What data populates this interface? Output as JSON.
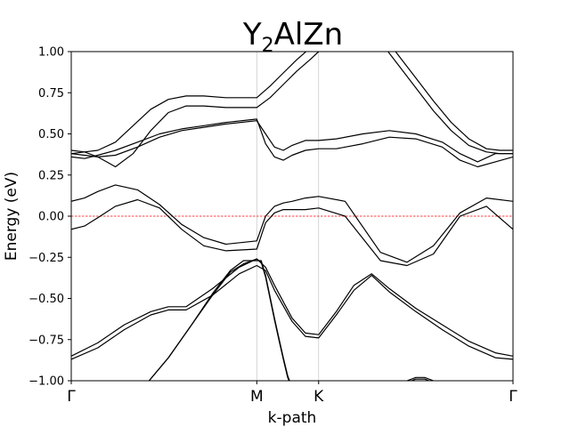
{
  "chart_data": {
    "type": "line",
    "title": "Y2AlZn",
    "title_parts": {
      "base1": "Y",
      "sub": "2",
      "base2": "AlZn"
    },
    "xlabel": "k-path",
    "ylabel": "Energy (eV)",
    "ylim": [
      -1.0,
      1.0
    ],
    "xlim": [
      0.0,
      1.0
    ],
    "yticks": [
      -1.0,
      -0.75,
      -0.5,
      -0.25,
      0.0,
      0.25,
      0.5,
      0.75,
      1.0
    ],
    "ytick_labels": [
      "−1.00",
      "−0.75",
      "−0.50",
      "−0.25",
      "0.00",
      "0.25",
      "0.50",
      "0.75",
      "1.00"
    ],
    "high_symmetry_points": [
      {
        "label": "Γ",
        "x": 0.0
      },
      {
        "label": "M",
        "x": 0.42
      },
      {
        "label": "K",
        "x": 0.56
      },
      {
        "label": "Γ",
        "x": 1.0
      }
    ],
    "fermi_level": 0.0,
    "fermi_color": "#ff0000",
    "band_color": "#000000",
    "vline_color": "#cccccc",
    "grid": false,
    "series": [
      {
        "x": [
          0,
          0.03,
          0.06,
          0.1,
          0.15,
          0.2,
          0.25,
          0.3,
          0.35,
          0.42,
          0.44,
          0.46,
          0.48,
          0.5,
          0.53,
          0.56,
          0.62,
          0.7,
          0.76,
          0.82,
          0.88,
          0.94,
          1.0
        ],
        "y": [
          0.09,
          0.11,
          0.15,
          0.19,
          0.16,
          0.07,
          -0.05,
          -0.13,
          -0.17,
          -0.15,
          0.0,
          0.06,
          0.08,
          0.09,
          0.11,
          0.12,
          0.09,
          -0.22,
          -0.28,
          -0.18,
          0.02,
          0.11,
          0.09
        ]
      },
      {
        "x": [
          0,
          0.03,
          0.06,
          0.1,
          0.15,
          0.2,
          0.25,
          0.3,
          0.35,
          0.42,
          0.44,
          0.46,
          0.48,
          0.5,
          0.53,
          0.56,
          0.62,
          0.7,
          0.76,
          0.82,
          0.88,
          0.94,
          1.0
        ],
        "y": [
          -0.08,
          -0.06,
          -0.01,
          0.06,
          0.1,
          0.05,
          -0.08,
          -0.18,
          -0.21,
          -0.2,
          -0.04,
          0.02,
          0.04,
          0.04,
          0.04,
          0.05,
          0.0,
          -0.27,
          -0.3,
          -0.23,
          0.0,
          0.06,
          -0.08
        ]
      },
      {
        "x": [
          0,
          0.03,
          0.06,
          0.1,
          0.15,
          0.2,
          0.25,
          0.3,
          0.35,
          0.42,
          0.44,
          0.46,
          0.48,
          0.5,
          0.53,
          0.56,
          0.6,
          0.66,
          0.72,
          0.78,
          0.84,
          0.88,
          0.92,
          0.96,
          1.0
        ],
        "y": [
          0.38,
          0.37,
          0.36,
          0.37,
          0.42,
          0.48,
          0.52,
          0.54,
          0.56,
          0.58,
          0.5,
          0.42,
          0.4,
          0.43,
          0.46,
          0.46,
          0.47,
          0.5,
          0.52,
          0.5,
          0.45,
          0.38,
          0.33,
          0.38,
          0.38
        ]
      },
      {
        "x": [
          0,
          0.03,
          0.06,
          0.1,
          0.15,
          0.2,
          0.25,
          0.3,
          0.35,
          0.42,
          0.44,
          0.46,
          0.48,
          0.5,
          0.53,
          0.56,
          0.6,
          0.66,
          0.72,
          0.78,
          0.84,
          0.88,
          0.92,
          0.96,
          1.0
        ],
        "y": [
          0.36,
          0.35,
          0.37,
          0.4,
          0.45,
          0.5,
          0.53,
          0.55,
          0.57,
          0.59,
          0.44,
          0.36,
          0.34,
          0.37,
          0.4,
          0.41,
          0.41,
          0.44,
          0.48,
          0.47,
          0.42,
          0.34,
          0.3,
          0.33,
          0.36
        ]
      },
      {
        "x": [
          0,
          0.03,
          0.06,
          0.1,
          0.14,
          0.18,
          0.22,
          0.26,
          0.3,
          0.35,
          0.42,
          0.45,
          0.48,
          0.51,
          0.54,
          0.56,
          0.58,
          0.6
        ],
        "y": [
          0.4,
          0.39,
          0.36,
          0.3,
          0.38,
          0.52,
          0.63,
          0.67,
          0.67,
          0.66,
          0.66,
          0.72,
          0.8,
          0.88,
          0.95,
          1.0,
          1.05,
          1.1
        ]
      },
      {
        "x": [
          0,
          0.03,
          0.06,
          0.1,
          0.14,
          0.18,
          0.22,
          0.26,
          0.3,
          0.35,
          0.42,
          0.45,
          0.48,
          0.51,
          0.54,
          0.56,
          0.58,
          0.6
        ],
        "y": [
          0.38,
          0.39,
          0.4,
          0.45,
          0.55,
          0.65,
          0.71,
          0.73,
          0.73,
          0.72,
          0.72,
          0.79,
          0.87,
          0.95,
          1.02,
          1.07,
          1.12,
          1.17
        ]
      },
      {
        "x": [
          0.66,
          0.7,
          0.74,
          0.78,
          0.82,
          0.86,
          0.9,
          0.94,
          0.97,
          1.0
        ],
        "y": [
          1.17,
          1.06,
          0.92,
          0.78,
          0.64,
          0.52,
          0.43,
          0.39,
          0.38,
          0.38
        ]
      },
      {
        "x": [
          0.7,
          0.74,
          0.78,
          0.82,
          0.86,
          0.9,
          0.94,
          0.97,
          1.0
        ],
        "y": [
          1.12,
          0.98,
          0.84,
          0.7,
          0.57,
          0.47,
          0.41,
          0.4,
          0.4
        ]
      },
      {
        "x": [
          0,
          0.06,
          0.12,
          0.18,
          0.22,
          0.26,
          0.32,
          0.38,
          0.42,
          0.44,
          0.46,
          0.5,
          0.53,
          0.56,
          0.6,
          0.64,
          0.68,
          0.72,
          0.78,
          0.84,
          0.9,
          0.96,
          1.0
        ],
        "y": [
          -0.85,
          -0.77,
          -0.66,
          -0.58,
          -0.55,
          -0.55,
          -0.44,
          -0.31,
          -0.26,
          -0.31,
          -0.42,
          -0.62,
          -0.71,
          -0.72,
          -0.58,
          -0.42,
          -0.35,
          -0.44,
          -0.56,
          -0.66,
          -0.76,
          -0.83,
          -0.85
        ]
      },
      {
        "x": [
          0,
          0.06,
          0.12,
          0.18,
          0.22,
          0.26,
          0.32,
          0.38,
          0.42,
          0.44,
          0.46,
          0.5,
          0.53,
          0.56,
          0.6,
          0.64,
          0.68,
          0.72,
          0.78,
          0.84,
          0.9,
          0.96,
          1.0
        ],
        "y": [
          -0.87,
          -0.8,
          -0.69,
          -0.6,
          -0.57,
          -0.57,
          -0.48,
          -0.35,
          -0.3,
          -0.33,
          -0.45,
          -0.64,
          -0.73,
          -0.74,
          -0.6,
          -0.45,
          -0.36,
          -0.46,
          -0.58,
          -0.69,
          -0.79,
          -0.86,
          -0.87
        ]
      },
      {
        "x": [
          0.17,
          0.22,
          0.27,
          0.32,
          0.36,
          0.39,
          0.42,
          0.43,
          0.44,
          0.45,
          0.46,
          0.47,
          0.48,
          0.49,
          0.5
        ],
        "y": [
          -1.02,
          -0.86,
          -0.67,
          -0.48,
          -0.34,
          -0.29,
          -0.26,
          -0.28,
          -0.37,
          -0.5,
          -0.63,
          -0.75,
          -0.87,
          -0.98,
          -1.05
        ]
      },
      {
        "x": [
          0.17,
          0.22,
          0.27,
          0.32,
          0.36,
          0.39,
          0.42,
          0.43,
          0.44,
          0.45,
          0.46,
          0.47,
          0.48,
          0.49,
          0.5
        ],
        "y": [
          -1.02,
          -0.86,
          -0.67,
          -0.47,
          -0.33,
          -0.27,
          -0.27,
          -0.27,
          -0.36,
          -0.49,
          -0.62,
          -0.74,
          -0.86,
          -0.97,
          -1.04
        ]
      },
      {
        "x": [
          0.76,
          0.78,
          0.8,
          0.82
        ],
        "y": [
          -1.0,
          -0.98,
          -0.98,
          -1.0
        ]
      },
      {
        "x": [
          0.77,
          0.78,
          0.8,
          0.81
        ],
        "y": [
          -1.0,
          -0.99,
          -0.99,
          -1.0
        ]
      }
    ]
  }
}
